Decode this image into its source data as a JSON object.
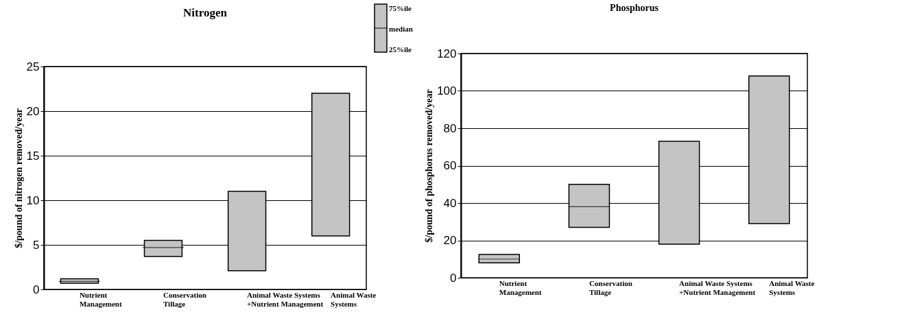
{
  "chart_data": [
    {
      "type": "box",
      "title": "Nitrogen",
      "ylabel": "$/pound of nitrogen removed/year",
      "categories": [
        "Nutrient\nManagement",
        "Conservation\nTillage",
        "Animal Waste Systems\n+Nutrient Management",
        "Animal Waste\nSystems"
      ],
      "series": [
        {
          "color": "#c4c4c4",
          "boxes": [
            {
              "q1": 0.7,
              "median": 0.9,
              "q3": 1.2
            },
            {
              "q1": 3.7,
              "median": 4.7,
              "q3": 5.5
            },
            null,
            null
          ]
        },
        {
          "type": "bar",
          "color": "#c4c4c4",
          "base": [
            null,
            null,
            2.1,
            6
          ],
          "values": [
            null,
            null,
            8.9,
            16
          ]
        }
      ],
      "ylim": [
        0,
        25
      ],
      "yticks": [
        0,
        5,
        10,
        15,
        20,
        25
      ],
      "grid": "y",
      "annotations": [
        "75%ile",
        "median",
        "25%ile"
      ]
    },
    {
      "type": "box",
      "title": "Phosphorus",
      "ylabel": "$/pound of phosphorus removed/year",
      "categories": [
        "Nutrient\nManagement",
        "Conservation\nTillage",
        "Animal Waste Systems\n+Nutrient Management",
        "Animal Waste\nSystems"
      ],
      "series": [
        {
          "color": "#c4c4c4",
          "boxes": [
            {
              "q1": 8,
              "median": 10,
              "q3": 12.5
            },
            {
              "q1": 27,
              "median": 38,
              "q3": 50
            },
            null,
            null
          ]
        },
        {
          "type": "bar",
          "color": "#c4c4c4",
          "base": [
            null,
            null,
            18,
            29
          ],
          "values": [
            null,
            null,
            55,
            79
          ]
        }
      ],
      "ylim": [
        0,
        120
      ],
      "yticks": [
        0,
        20,
        40,
        60,
        80,
        100,
        120
      ],
      "grid": "y"
    }
  ]
}
